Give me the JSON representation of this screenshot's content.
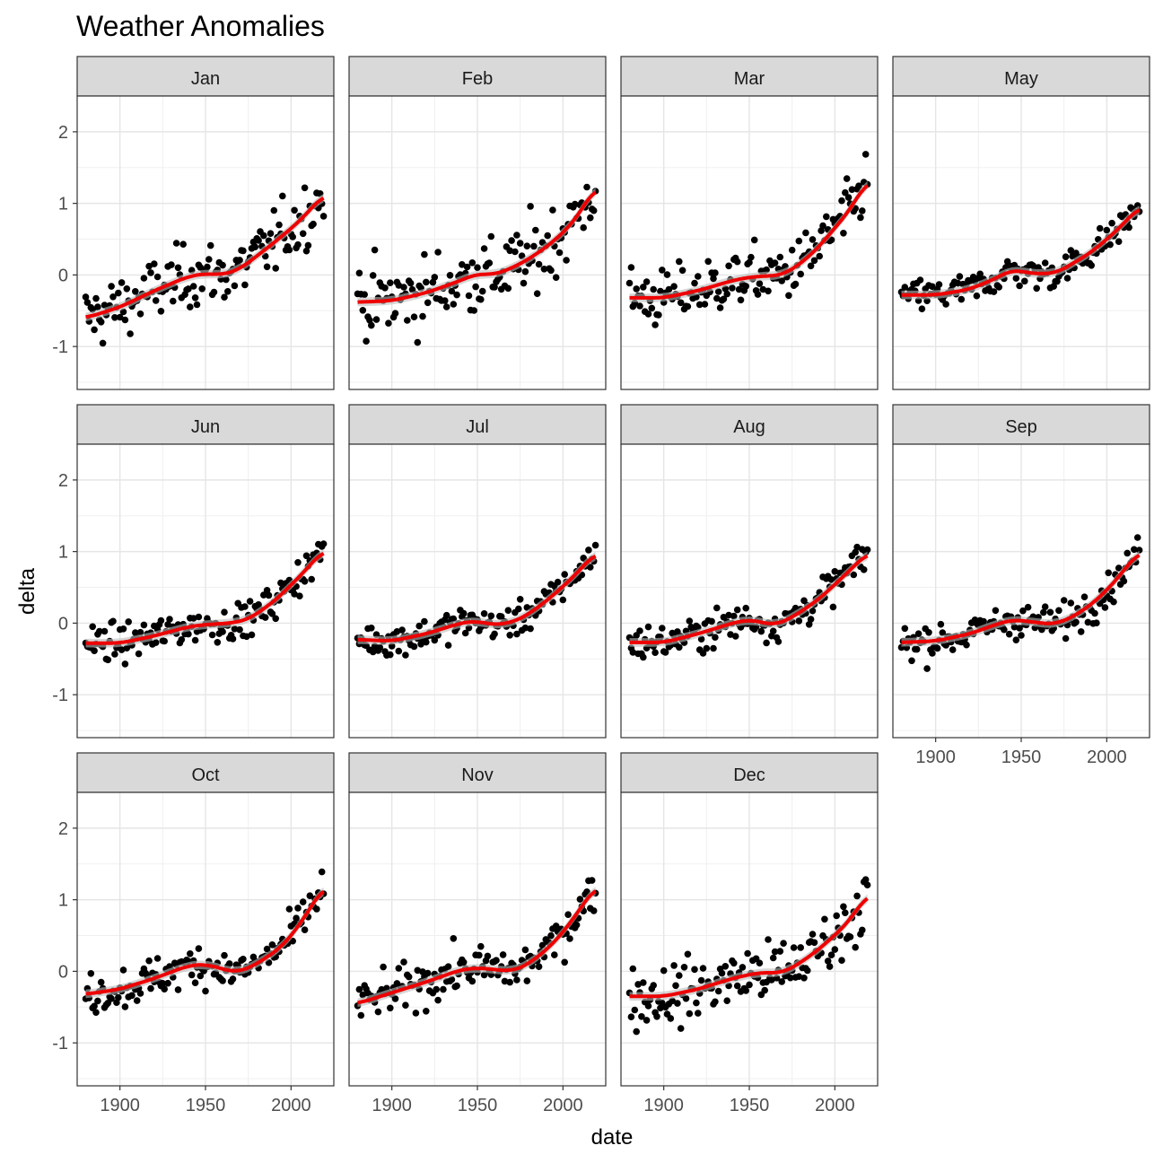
{
  "chart_data": {
    "type": "scatter",
    "title": "Weather Anomalies",
    "xlabel": "date",
    "ylabel": "delta",
    "xlim": [
      1875,
      2025
    ],
    "ylim": [
      -1.6,
      2.5
    ],
    "x_ticks": [
      1900,
      1950,
      2000
    ],
    "y_ticks": [
      -1,
      0,
      1,
      2
    ],
    "grid": true,
    "facet_layout": "4 columns x 3 rows",
    "smooth_color": "#ee0000",
    "point_color": "#000000",
    "ribbon_color": "#bdbdbd",
    "strip_fill": "#d9d9d9",
    "panels": [
      {
        "label": "Jan",
        "trend": [
          [
            1880,
            -0.6
          ],
          [
            1900,
            -0.45
          ],
          [
            1920,
            -0.22
          ],
          [
            1940,
            -0.02
          ],
          [
            1950,
            0.02
          ],
          [
            1960,
            0.0
          ],
          [
            1970,
            0.08
          ],
          [
            1990,
            0.45
          ],
          [
            2005,
            0.75
          ],
          [
            2019,
            1.12
          ]
        ],
        "scatter": 0.22
      },
      {
        "label": "Feb",
        "trend": [
          [
            1880,
            -0.38
          ],
          [
            1900,
            -0.36
          ],
          [
            1920,
            -0.25
          ],
          [
            1940,
            -0.08
          ],
          [
            1950,
            0.02
          ],
          [
            1960,
            0.0
          ],
          [
            1975,
            0.15
          ],
          [
            1990,
            0.38
          ],
          [
            2005,
            0.7
          ],
          [
            2019,
            1.22
          ]
        ],
        "scatter": 0.26
      },
      {
        "label": "Mar",
        "trend": [
          [
            1880,
            -0.32
          ],
          [
            1900,
            -0.32
          ],
          [
            1920,
            -0.22
          ],
          [
            1940,
            -0.08
          ],
          [
            1950,
            -0.03
          ],
          [
            1970,
            0.0
          ],
          [
            1985,
            0.25
          ],
          [
            2000,
            0.65
          ],
          [
            2010,
            0.95
          ],
          [
            2019,
            1.32
          ]
        ],
        "scatter": 0.2
      },
      {
        "label": "May",
        "trend": [
          [
            1880,
            -0.28
          ],
          [
            1900,
            -0.28
          ],
          [
            1920,
            -0.2
          ],
          [
            1935,
            -0.05
          ],
          [
            1945,
            0.08
          ],
          [
            1955,
            0.02
          ],
          [
            1970,
            0.02
          ],
          [
            1990,
            0.3
          ],
          [
            2005,
            0.6
          ],
          [
            2019,
            0.95
          ]
        ],
        "scatter": 0.11
      },
      {
        "label": "Jun",
        "trend": [
          [
            1880,
            -0.28
          ],
          [
            1900,
            -0.28
          ],
          [
            1920,
            -0.18
          ],
          [
            1940,
            -0.05
          ],
          [
            1950,
            -0.02
          ],
          [
            1965,
            0.0
          ],
          [
            1975,
            0.05
          ],
          [
            1990,
            0.3
          ],
          [
            2005,
            0.65
          ],
          [
            2019,
            1.02
          ]
        ],
        "scatter": 0.12
      },
      {
        "label": "Jul",
        "trend": [
          [
            1880,
            -0.23
          ],
          [
            1900,
            -0.25
          ],
          [
            1920,
            -0.15
          ],
          [
            1940,
            0.0
          ],
          [
            1948,
            0.03
          ],
          [
            1962,
            -0.03
          ],
          [
            1975,
            0.05
          ],
          [
            1990,
            0.3
          ],
          [
            2005,
            0.62
          ],
          [
            2019,
            0.98
          ]
        ],
        "scatter": 0.11
      },
      {
        "label": "Aug",
        "trend": [
          [
            1880,
            -0.27
          ],
          [
            1900,
            -0.27
          ],
          [
            1920,
            -0.15
          ],
          [
            1940,
            0.0
          ],
          [
            1950,
            0.05
          ],
          [
            1965,
            -0.03
          ],
          [
            1975,
            0.08
          ],
          [
            1990,
            0.32
          ],
          [
            2005,
            0.65
          ],
          [
            2019,
            0.98
          ]
        ],
        "scatter": 0.12
      },
      {
        "label": "Sep",
        "trend": [
          [
            1880,
            -0.27
          ],
          [
            1900,
            -0.25
          ],
          [
            1920,
            -0.15
          ],
          [
            1935,
            -0.02
          ],
          [
            1945,
            0.05
          ],
          [
            1955,
            0.02
          ],
          [
            1970,
            -0.02
          ],
          [
            1985,
            0.15
          ],
          [
            2000,
            0.45
          ],
          [
            2019,
            1.0
          ]
        ],
        "scatter": 0.12
      },
      {
        "label": "Oct",
        "trend": [
          [
            1880,
            -0.32
          ],
          [
            1900,
            -0.25
          ],
          [
            1920,
            -0.1
          ],
          [
            1940,
            0.08
          ],
          [
            1950,
            0.1
          ],
          [
            1968,
            -0.02
          ],
          [
            1980,
            0.1
          ],
          [
            1995,
            0.35
          ],
          [
            2005,
            0.65
          ],
          [
            2019,
            1.18
          ]
        ],
        "scatter": 0.14
      },
      {
        "label": "Nov",
        "trend": [
          [
            1880,
            -0.45
          ],
          [
            1900,
            -0.3
          ],
          [
            1920,
            -0.15
          ],
          [
            1940,
            0.02
          ],
          [
            1950,
            0.05
          ],
          [
            1970,
            0.0
          ],
          [
            1980,
            0.1
          ],
          [
            1995,
            0.4
          ],
          [
            2005,
            0.7
          ],
          [
            2019,
            1.18
          ]
        ],
        "scatter": 0.15
      },
      {
        "label": "Dec",
        "trend": [
          [
            1880,
            -0.35
          ],
          [
            1900,
            -0.35
          ],
          [
            1920,
            -0.25
          ],
          [
            1940,
            -0.1
          ],
          [
            1955,
            -0.02
          ],
          [
            1970,
            -0.02
          ],
          [
            1985,
            0.2
          ],
          [
            2000,
            0.5
          ],
          [
            2010,
            0.75
          ],
          [
            2019,
            1.08
          ]
        ],
        "scatter": 0.22
      }
    ]
  }
}
